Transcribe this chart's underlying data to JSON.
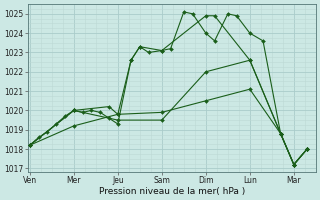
{
  "background_color": "#cce8e4",
  "grid_color_major": "#aaccca",
  "grid_color_minor": "#bcd8d5",
  "line_color": "#1a5e1a",
  "xlabel": "Pression niveau de la mer( hPa )",
  "ylim": [
    1016.8,
    1025.5
  ],
  "yticks": [
    1017,
    1018,
    1019,
    1020,
    1021,
    1022,
    1023,
    1024,
    1025
  ],
  "xtick_labels": [
    "Ven",
    "Mer",
    "Jeu",
    "Sam",
    "Dim",
    "Lun",
    "Mar"
  ],
  "xtick_positions": [
    0,
    1,
    2,
    3,
    4,
    5,
    6
  ],
  "xlim": [
    -0.05,
    6.5
  ],
  "series": [
    {
      "x": [
        0.0,
        0.2,
        0.4,
        0.6,
        0.8,
        1.0,
        1.2,
        1.4,
        1.6,
        1.8,
        2.0,
        2.3,
        2.5,
        2.7,
        3.0,
        3.2,
        3.5,
        3.7,
        4.0,
        4.2,
        4.5,
        4.7,
        5.0,
        5.3,
        5.7,
        6.0,
        6.3
      ],
      "y": [
        1018.2,
        1018.6,
        1018.9,
        1019.3,
        1019.7,
        1020.0,
        1019.9,
        1020.0,
        1019.9,
        1019.6,
        1019.3,
        1022.6,
        1023.3,
        1023.0,
        1023.1,
        1023.2,
        1025.1,
        1025.0,
        1024.0,
        1023.6,
        1025.0,
        1024.9,
        1024.0,
        1023.6,
        1018.8,
        1017.2,
        1018.0
      ]
    },
    {
      "x": [
        0.0,
        1.0,
        1.8,
        2.0,
        2.3,
        2.5,
        3.0,
        4.0,
        4.2,
        5.0,
        5.7,
        6.0,
        6.3
      ],
      "y": [
        1018.2,
        1020.0,
        1020.2,
        1019.8,
        1022.6,
        1023.3,
        1023.1,
        1024.9,
        1024.9,
        1022.6,
        1018.8,
        1017.2,
        1018.0
      ]
    },
    {
      "x": [
        0.0,
        1.0,
        2.0,
        3.0,
        4.0,
        5.0,
        5.7,
        6.0,
        6.3
      ],
      "y": [
        1018.2,
        1020.0,
        1019.5,
        1019.5,
        1022.0,
        1022.6,
        1018.8,
        1017.2,
        1018.0
      ]
    },
    {
      "x": [
        0.0,
        1.0,
        2.0,
        3.0,
        4.0,
        5.0,
        5.7,
        6.0,
        6.3
      ],
      "y": [
        1018.2,
        1019.2,
        1019.8,
        1019.9,
        1020.5,
        1021.1,
        1018.8,
        1017.2,
        1018.0
      ]
    }
  ]
}
